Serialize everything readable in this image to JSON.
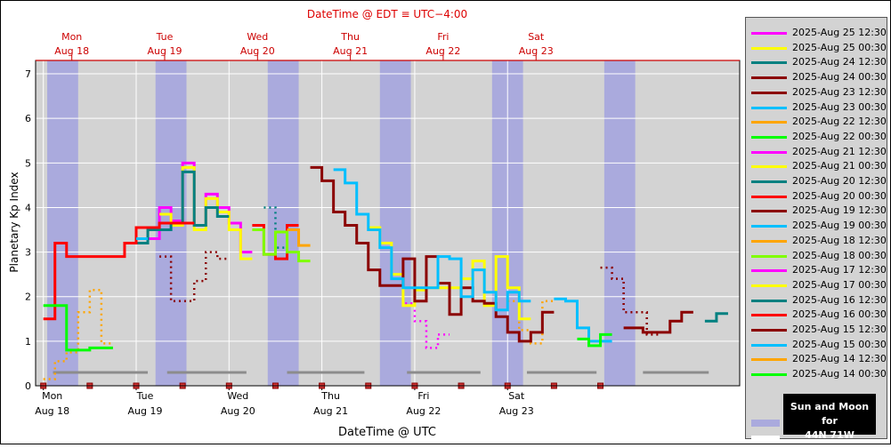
{
  "chart_data": {
    "type": "line",
    "title": "DateTime @ EDT ≡ UTC−4:00",
    "xlabel": "DateTime @ UTC",
    "ylabel": "Planetary Kp Index",
    "ylim": [
      0,
      7.3
    ],
    "y_ticks": [
      0,
      1,
      2,
      3,
      4,
      5,
      6,
      7
    ],
    "x_range_hours": [
      0,
      144
    ],
    "x_ticks_bottom": [
      {
        "day": "Mon",
        "date": "Aug 18"
      },
      {
        "day": "Tue",
        "date": "Aug 19"
      },
      {
        "day": "Wed",
        "date": "Aug 20"
      },
      {
        "day": "Thu",
        "date": "Aug 21"
      },
      {
        "day": "Fri",
        "date": "Aug 22"
      },
      {
        "day": "Sat",
        "date": "Aug 23"
      }
    ],
    "x_ticks_top": [
      {
        "day": "Mon",
        "date": "Aug 18"
      },
      {
        "day": "Tue",
        "date": "Aug 19"
      },
      {
        "day": "Wed",
        "date": "Aug 20"
      },
      {
        "day": "Thu",
        "date": "Aug 21"
      },
      {
        "day": "Fri",
        "date": "Aug 22"
      },
      {
        "day": "Sat",
        "date": "Aug 23"
      }
    ],
    "grid": true,
    "legend_position": "right",
    "night_bands_hours": [
      [
        1,
        9
      ],
      [
        29,
        37
      ],
      [
        58,
        66
      ],
      [
        87,
        95
      ],
      [
        116,
        124
      ],
      [
        145,
        153
      ]
    ],
    "moon_bars_hours": [
      [
        2.5,
        27
      ],
      [
        32,
        52.5
      ],
      [
        63,
        83
      ],
      [
        94,
        113
      ],
      [
        125,
        143
      ],
      [
        155,
        172
      ]
    ],
    "series": [
      {
        "name": "2025-Aug 25 12:30",
        "color": "#ff00ff",
        "steps": [
          [
            180,
            1.6
          ]
        ]
      },
      {
        "name": "2025-Aug 25 00:30",
        "color": "#ffff00",
        "steps": [
          [
            180,
            1.6
          ]
        ]
      },
      {
        "name": "2025-Aug 24 12:30",
        "color": "#008080",
        "steps": [
          [
            171,
            1.45
          ],
          [
            174,
            1.62
          ]
        ]
      },
      {
        "name": "2025-Aug 24 00:30",
        "color": "#8b0000",
        "steps": [
          [
            150,
            1.3
          ],
          [
            155,
            1.2
          ],
          [
            162,
            1.45
          ],
          [
            165,
            1.65
          ]
        ]
      },
      {
        "name": "2025-Aug 23 12:30",
        "color": "#8b0000",
        "dotted": true,
        "steps": [
          [
            144,
            2.65
          ],
          [
            147,
            2.4
          ],
          [
            150,
            1.65
          ],
          [
            153,
            1.65
          ],
          [
            156,
            1.15
          ]
        ]
      },
      {
        "name": "2025-Aug 23 00:30",
        "color": "#00bfff",
        "steps": [
          [
            132,
            1.95
          ],
          [
            135,
            1.9
          ],
          [
            138,
            1.3
          ],
          [
            141,
            1.0
          ],
          [
            144,
            1.0
          ]
        ]
      },
      {
        "name": "2025-Aug 22 12:30",
        "color": "#ffa500",
        "dotted": true,
        "steps": [
          [
            120,
            1.9
          ],
          [
            123,
            1.25
          ],
          [
            126,
            0.95
          ],
          [
            129,
            1.9
          ]
        ]
      },
      {
        "name": "2025-Aug 22 00:30",
        "color": "#00ff00",
        "steps": [
          [
            138,
            1.05
          ],
          [
            141,
            0.9
          ],
          [
            144,
            1.15
          ]
        ]
      },
      {
        "name": "2025-Aug 21 12:30",
        "color": "#ff00ff",
        "dotted": true,
        "steps": [
          [
            90,
            2.5
          ],
          [
            93,
            1.85
          ],
          [
            96,
            1.45
          ],
          [
            99,
            0.85
          ],
          [
            102,
            1.15
          ]
        ]
      },
      {
        "name": "2025-Aug 21 00:30",
        "color": "#ffff00",
        "steps": [
          [
            84,
            3.55
          ],
          [
            87,
            3.2
          ],
          [
            90,
            2.5
          ],
          [
            93,
            1.8
          ],
          [
            96,
            2.15
          ],
          [
            99,
            2.2
          ],
          [
            108,
            2.4
          ],
          [
            111,
            2.8
          ],
          [
            114,
            1.8
          ],
          [
            117,
            2.9
          ],
          [
            120,
            2.2
          ],
          [
            123,
            1.5
          ]
        ]
      },
      {
        "name": "2025-Aug 20 12:30",
        "color": "#008080",
        "dotted": true,
        "steps": [
          [
            57,
            4.0
          ],
          [
            60,
            3.1
          ]
        ]
      },
      {
        "name": "2025-Aug 20 00:30",
        "color": "#ff0000",
        "steps": [
          [
            54,
            3.6
          ],
          [
            57,
            2.95
          ],
          [
            60,
            2.85
          ],
          [
            63,
            3.6
          ]
        ]
      },
      {
        "name": "2025-Aug 19 12:30",
        "color": "#8b0000",
        "steps": [
          [
            69,
            4.9
          ],
          [
            72,
            4.6
          ],
          [
            75,
            3.9
          ],
          [
            78,
            3.6
          ],
          [
            81,
            3.2
          ],
          [
            84,
            2.6
          ],
          [
            87,
            2.25
          ],
          [
            93,
            2.85
          ],
          [
            96,
            1.9
          ],
          [
            99,
            2.9
          ],
          [
            102,
            2.3
          ],
          [
            105,
            1.6
          ],
          [
            108,
            2.2
          ],
          [
            111,
            1.9
          ],
          [
            114,
            1.85
          ],
          [
            117,
            1.55
          ],
          [
            120,
            1.2
          ],
          [
            123,
            1.0
          ],
          [
            126,
            1.2
          ],
          [
            129,
            1.65
          ]
        ]
      },
      {
        "name": "2025-Aug 19 00:30",
        "color": "#00bfff",
        "steps": [
          [
            75,
            4.85
          ],
          [
            78,
            4.55
          ],
          [
            81,
            3.85
          ],
          [
            84,
            3.5
          ],
          [
            87,
            3.1
          ],
          [
            90,
            2.4
          ],
          [
            93,
            2.2
          ],
          [
            102,
            2.9
          ],
          [
            105,
            2.85
          ],
          [
            108,
            2.0
          ],
          [
            111,
            2.6
          ],
          [
            114,
            2.1
          ],
          [
            117,
            1.7
          ],
          [
            120,
            2.1
          ],
          [
            123,
            1.9
          ]
        ]
      },
      {
        "name": "2025-Aug 18 12:30",
        "color": "#ffa500",
        "steps": [
          [
            63,
            3.5
          ],
          [
            66,
            3.15
          ]
        ]
      },
      {
        "name": "2025-Aug 18 00:30",
        "color": "#7fff00",
        "steps": [
          [
            54,
            3.5
          ],
          [
            57,
            2.95
          ],
          [
            60,
            3.45
          ],
          [
            63,
            3.0
          ],
          [
            66,
            2.8
          ]
        ]
      },
      {
        "name": "2025-Aug 17 12:30",
        "color": "#ff00ff",
        "steps": [
          [
            27,
            3.3
          ],
          [
            30,
            4.0
          ],
          [
            33,
            3.7
          ],
          [
            36,
            5.0
          ],
          [
            39,
            3.6
          ],
          [
            42,
            4.3
          ],
          [
            45,
            4.0
          ],
          [
            48,
            3.65
          ],
          [
            51,
            3.0
          ]
        ]
      },
      {
        "name": "2025-Aug 17 00:30",
        "color": "#ffff00",
        "steps": [
          [
            30,
            3.85
          ],
          [
            33,
            3.6
          ],
          [
            36,
            4.9
          ],
          [
            39,
            3.5
          ],
          [
            42,
            4.2
          ],
          [
            45,
            3.9
          ],
          [
            48,
            3.5
          ],
          [
            51,
            2.85
          ]
        ]
      },
      {
        "name": "2025-Aug 16 12:30",
        "color": "#008080",
        "steps": [
          [
            24,
            3.2
          ],
          [
            27,
            3.5
          ],
          [
            33,
            3.65
          ],
          [
            36,
            4.8
          ],
          [
            39,
            3.6
          ],
          [
            42,
            4.0
          ],
          [
            45,
            3.8
          ]
        ]
      },
      {
        "name": "2025-Aug 16 00:30",
        "color": "#ff0000",
        "steps": [
          [
            0,
            1.5
          ],
          [
            3,
            3.2
          ],
          [
            6,
            2.9
          ],
          [
            18,
            2.9
          ],
          [
            21,
            3.2
          ],
          [
            24,
            3.55
          ],
          [
            30,
            3.65
          ],
          [
            36,
            3.65
          ]
        ]
      },
      {
        "name": "2025-Aug 15 12:30",
        "color": "#8b0000",
        "dotted": true,
        "steps": [
          [
            30,
            2.9
          ],
          [
            33,
            1.9
          ],
          [
            39,
            2.35
          ],
          [
            42,
            3.0
          ],
          [
            45,
            2.85
          ]
        ]
      },
      {
        "name": "2025-Aug 15 00:30",
        "color": "#00bfff",
        "steps": [
          [
            24,
            3.3
          ]
        ]
      },
      {
        "name": "2025-Aug 14 12:30",
        "color": "#ffa500",
        "dotted": true,
        "steps": [
          [
            0,
            0.15
          ],
          [
            3,
            0.55
          ],
          [
            6,
            0.75
          ],
          [
            9,
            1.65
          ],
          [
            12,
            2.15
          ],
          [
            15,
            0.95
          ]
        ]
      },
      {
        "name": "2025-Aug 14 00:30",
        "color": "#00ff00",
        "steps": [
          [
            0,
            1.8
          ],
          [
            3,
            1.8
          ],
          [
            6,
            0.8
          ],
          [
            12,
            0.85
          ],
          [
            15,
            0.85
          ]
        ]
      }
    ]
  }
}
